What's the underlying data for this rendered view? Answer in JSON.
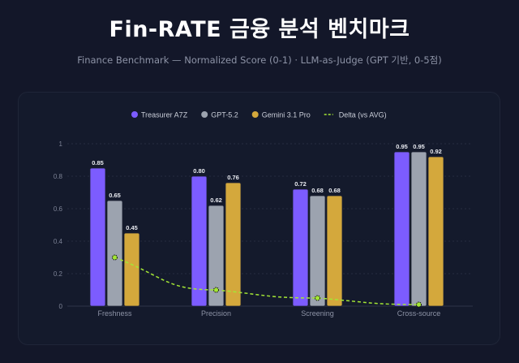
{
  "header": {
    "title": "Fin-RATE 금융 분석 벤치마크",
    "subtitle": "Finance Benchmark — Normalized Score (0-1) · LLM-as-Judge (GPT 기반, 0-5점)"
  },
  "chart_data": {
    "type": "bar",
    "categories": [
      "Freshness",
      "Precision",
      "Screening",
      "Cross-source"
    ],
    "series": [
      {
        "name": "Treasurer A7Z",
        "color": "#7c5cff",
        "values": [
          0.85,
          0.8,
          0.72,
          0.95
        ]
      },
      {
        "name": "GPT-5.2",
        "color": "#9ca3af",
        "values": [
          0.65,
          0.62,
          0.68,
          0.95
        ]
      },
      {
        "name": "Gemini 3.1 Pro",
        "color": "#d4a83c",
        "values": [
          0.45,
          0.76,
          0.68,
          0.92
        ]
      }
    ],
    "line_series": {
      "name": "Delta (vs AVG)",
      "color": "#a3e635",
      "values": [
        0.3,
        0.1,
        0.05,
        0.01
      ]
    },
    "ylim": [
      0,
      1
    ],
    "yticks": [
      "0",
      "0.2",
      "0.4",
      "0.6",
      "0.8",
      "1"
    ],
    "grid": true,
    "legend": "top-center"
  }
}
